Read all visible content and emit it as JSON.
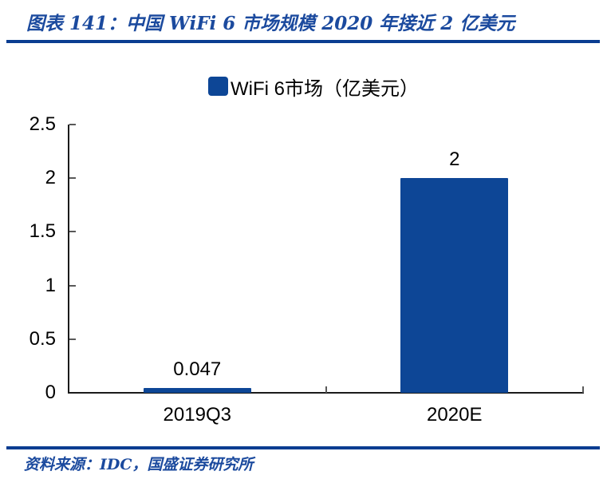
{
  "header": {
    "title": "图表 141：中国 WiFi 6 市场规模 2020 年接近 2 亿美元"
  },
  "footer": {
    "source": "资料来源：IDC，国盛证券研究所"
  },
  "colors": {
    "bar_blue": "#0d4696",
    "rule_blue": "#0a3d91",
    "title_text_blue": "#1b4a9e",
    "axis_black": "#1a1a1a",
    "tick_gray": "#595959"
  },
  "chart_data": {
    "type": "bar",
    "title": "",
    "legend": [
      "WiFi 6市场（亿美元）"
    ],
    "legend_position": "top",
    "categories": [
      "2019Q3",
      "2020E"
    ],
    "values": [
      0.047,
      2
    ],
    "data_labels": [
      "0.047",
      "2"
    ],
    "xlabel": "",
    "ylabel": "",
    "ylim": [
      0,
      2.5
    ],
    "yticks": [
      0,
      0.5,
      1,
      1.5,
      2,
      2.5
    ],
    "ytick_labels": [
      "0",
      "0.5",
      "1",
      "1.5",
      "2",
      "2.5"
    ],
    "grid": false,
    "bar_color": "#0d4696"
  }
}
